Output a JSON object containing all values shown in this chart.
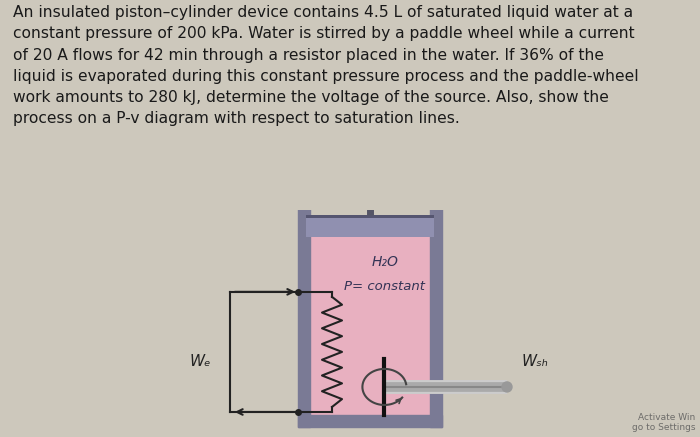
{
  "bg_color": "#cdc8bc",
  "text_color": "#1a1a1a",
  "problem_text": "An insulated piston–cylinder device contains 4.5 L of saturated liquid water at a\nconstant pressure of 200 kPa. Water is stirred by a paddle wheel while a current\nof 20 A flows for 42 min through a resistor placed in the water. If 36% of the\nliquid is evaporated during this constant pressure process and the paddle-wheel\nwork amounts to 280 kJ, determine the voltage of the source. Also, show the\nprocess on a P-v diagram with respect to saturation lines.",
  "problem_fontsize": 11.2,
  "wall_color": "#7a7a95",
  "inner_color": "#e8b0c0",
  "piston_color": "#9090b0",
  "wire_color": "#222222",
  "we_label": "Wₑ",
  "wsh_label": "Wₛₕ",
  "water_label": "H₂O",
  "pressure_label": "P= constant",
  "activate_text": "Activate Win\ngo to Settings"
}
